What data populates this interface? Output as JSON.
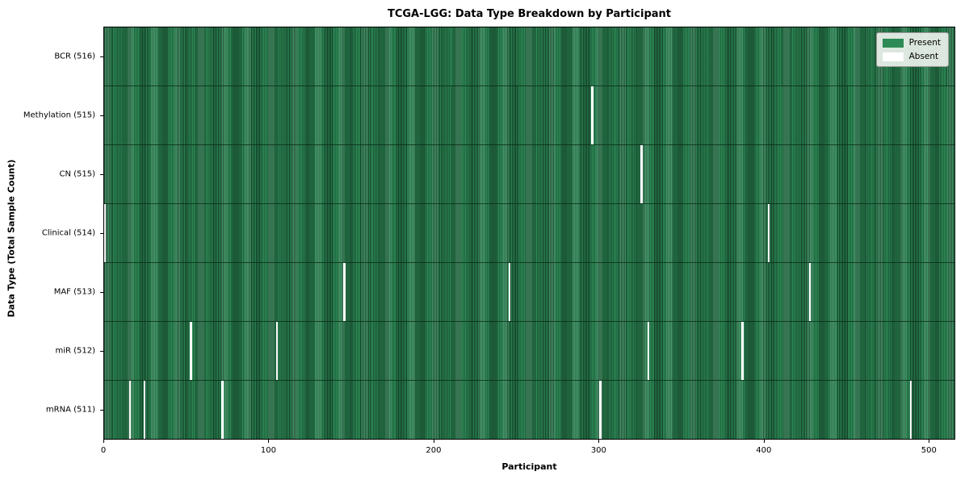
{
  "chart_data": {
    "type": "heatmap",
    "title": "TCGA-LGG: Data Type Breakdown by Participant",
    "xlabel": "Participant",
    "ylabel": "Data Type (Total Sample Count)",
    "x_ticks": [
      0,
      100,
      200,
      300,
      400,
      500
    ],
    "x_range": [
      0,
      516
    ],
    "n_participants": 516,
    "grid": false,
    "legend_position": "upper right",
    "legend": [
      {
        "label": "Present",
        "color": "#2e8b57"
      },
      {
        "label": "Absent",
        "color": "#ffffff"
      }
    ],
    "rows": [
      {
        "label": "BCR (516)",
        "name": "BCR",
        "present_count": 516,
        "absent_participants": []
      },
      {
        "label": "Methylation (515)",
        "name": "Methylation",
        "present_count": 515,
        "absent_participants": [
          295
        ]
      },
      {
        "label": "CN (515)",
        "name": "CN",
        "present_count": 515,
        "absent_participants": [
          325
        ]
      },
      {
        "label": "Clinical (514)",
        "name": "Clinical",
        "present_count": 514,
        "absent_participants": [
          0,
          402
        ]
      },
      {
        "label": "MAF (513)",
        "name": "MAF",
        "present_count": 513,
        "absent_participants": [
          145,
          245,
          427
        ]
      },
      {
        "label": "miR (512)",
        "name": "miR",
        "present_count": 512,
        "absent_participants": [
          52,
          104,
          329,
          386
        ]
      },
      {
        "label": "mRNA (511)",
        "name": "mRNA",
        "present_count": 511,
        "absent_participants": [
          15,
          24,
          71,
          300,
          488
        ]
      }
    ]
  }
}
